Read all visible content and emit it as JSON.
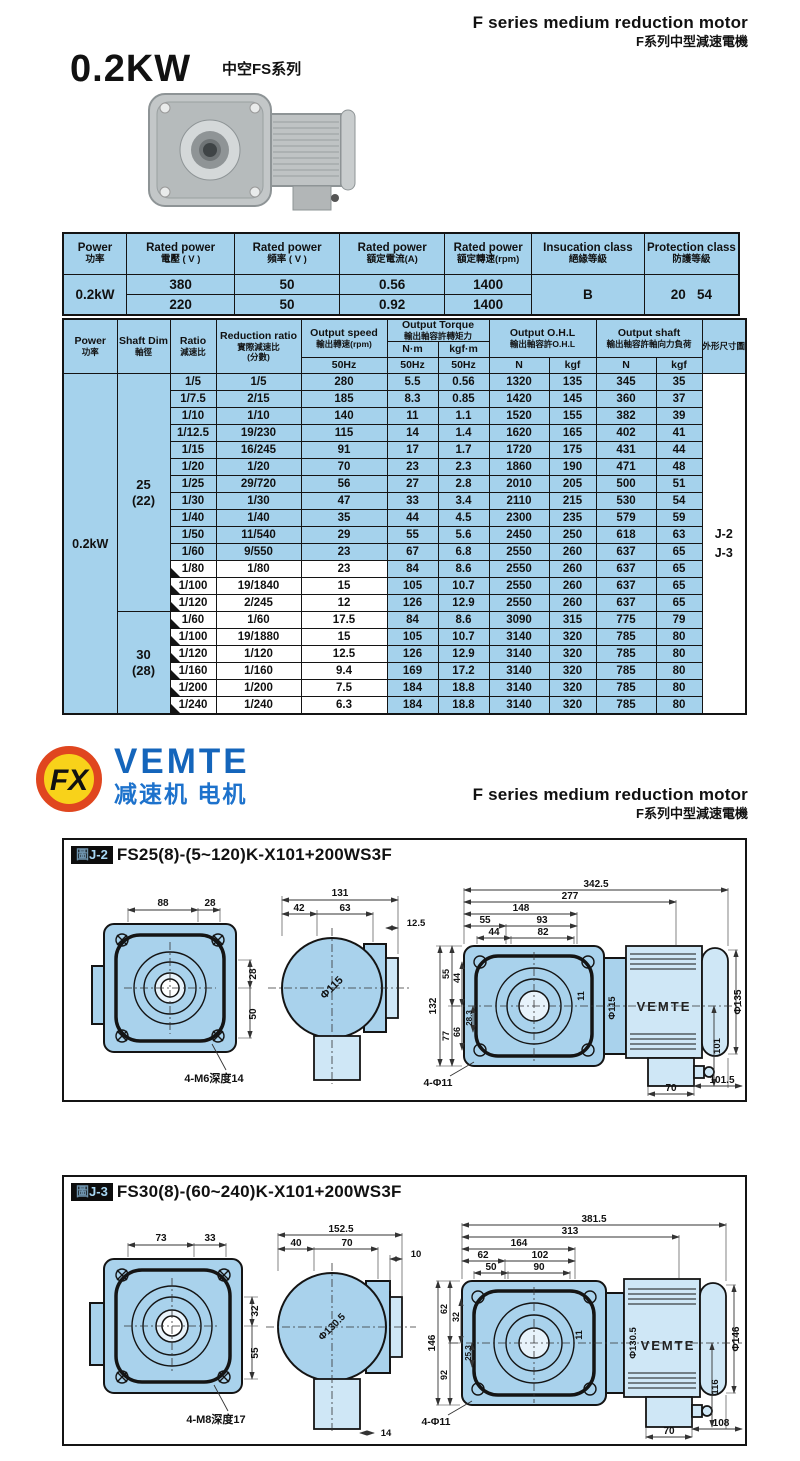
{
  "header": {
    "en": "F series medium reduction motor",
    "zh": "F系列中型減速電機"
  },
  "title": "0.2KW",
  "series": "中空FS系列",
  "logo": {
    "badge": "FX",
    "brand": "VEMTE",
    "tagline": "减速机 电机"
  },
  "table1": {
    "cols": [
      {
        "en": "Power",
        "zh": "功率"
      },
      {
        "en": "Rated power",
        "zh": "電壓 ( V )"
      },
      {
        "en": "Rated power",
        "zh": "頻率 ( V )"
      },
      {
        "en": "Rated power",
        "zh": "額定電流(A)"
      },
      {
        "en": "Rated power",
        "zh": "額定轉速(rpm)"
      },
      {
        "en": "Insucation class",
        "zh": "絕緣等級"
      },
      {
        "en": "Protection class",
        "zh": "防護等級"
      }
    ],
    "power": "0.2kW",
    "rows": [
      [
        "380",
        "50",
        "0.56",
        "1400"
      ],
      [
        "220",
        "50",
        "0.92",
        "1400"
      ]
    ],
    "insulation": "B",
    "protection": "20   54"
  },
  "table2": {
    "power": "0.2kW",
    "h_power": {
      "en": "Power",
      "zh": "功率"
    },
    "h_shaft": {
      "en": "Shaft Dim",
      "zh": "軸徑"
    },
    "h_ratio": {
      "en": "Ratio",
      "zh": "減速比"
    },
    "h_reduction": {
      "en": "Reduction ratio",
      "zh": "實際減速比",
      "zh2": "(分數)"
    },
    "h_speed": {
      "en": "Output speed",
      "zh": "輸出轉速(rpm)",
      "sub": "50Hz"
    },
    "h_torque": {
      "en": "Output Torque",
      "zh": "輸出軸容許轉矩力",
      "u1": "N·m",
      "u2": "kgf·m",
      "f1": "50Hz",
      "f2": "50Hz"
    },
    "h_ohl": {
      "en": "Output O.H.L",
      "zh": "輸出軸容許O.H.L",
      "u1": "N",
      "u2": "kgf"
    },
    "h_outshaft": {
      "en": "Output shaft",
      "zh": "輸出軸容許軸向力負荷",
      "u1": "N",
      "u2": "kgf"
    },
    "h_outline": {
      "zh": "外形尺寸圖"
    },
    "outline_refs": [
      "J-2",
      "J-3"
    ],
    "groups": [
      {
        "shaft": "25",
        "shaft_sub": "(22)",
        "rows": [
          {
            "ratio": "1/5",
            "red": "1/5",
            "spd": "280",
            "nm": "5.5",
            "kgfm": "0.56",
            "ohln": "1320",
            "ohlkgf": "135",
            "shn": "345",
            "shkgf": "35",
            "white": false,
            "tri": false
          },
          {
            "ratio": "1/7.5",
            "red": "2/15",
            "spd": "185",
            "nm": "8.3",
            "kgfm": "0.85",
            "ohln": "1420",
            "ohlkgf": "145",
            "shn": "360",
            "shkgf": "37",
            "white": false,
            "tri": false
          },
          {
            "ratio": "1/10",
            "red": "1/10",
            "spd": "140",
            "nm": "11",
            "kgfm": "1.1",
            "ohln": "1520",
            "ohlkgf": "155",
            "shn": "382",
            "shkgf": "39",
            "white": false,
            "tri": false
          },
          {
            "ratio": "1/12.5",
            "red": "19/230",
            "spd": "115",
            "nm": "14",
            "kgfm": "1.4",
            "ohln": "1620",
            "ohlkgf": "165",
            "shn": "402",
            "shkgf": "41",
            "white": false,
            "tri": false
          },
          {
            "ratio": "1/15",
            "red": "16/245",
            "spd": "91",
            "nm": "17",
            "kgfm": "1.7",
            "ohln": "1720",
            "ohlkgf": "175",
            "shn": "431",
            "shkgf": "44",
            "white": false,
            "tri": false
          },
          {
            "ratio": "1/20",
            "red": "1/20",
            "spd": "70",
            "nm": "23",
            "kgfm": "2.3",
            "ohln": "1860",
            "ohlkgf": "190",
            "shn": "471",
            "shkgf": "48",
            "white": false,
            "tri": false
          },
          {
            "ratio": "1/25",
            "red": "29/720",
            "spd": "56",
            "nm": "27",
            "kgfm": "2.8",
            "ohln": "2010",
            "ohlkgf": "205",
            "shn": "500",
            "shkgf": "51",
            "white": false,
            "tri": false
          },
          {
            "ratio": "1/30",
            "red": "1/30",
            "spd": "47",
            "nm": "33",
            "kgfm": "3.4",
            "ohln": "2110",
            "ohlkgf": "215",
            "shn": "530",
            "shkgf": "54",
            "white": false,
            "tri": false
          },
          {
            "ratio": "1/40",
            "red": "1/40",
            "spd": "35",
            "nm": "44",
            "kgfm": "4.5",
            "ohln": "2300",
            "ohlkgf": "235",
            "shn": "579",
            "shkgf": "59",
            "white": false,
            "tri": false
          },
          {
            "ratio": "1/50",
            "red": "11/540",
            "spd": "29",
            "nm": "55",
            "kgfm": "5.6",
            "ohln": "2450",
            "ohlkgf": "250",
            "shn": "618",
            "shkgf": "63",
            "white": false,
            "tri": false
          },
          {
            "ratio": "1/60",
            "red": "9/550",
            "spd": "23",
            "nm": "67",
            "kgfm": "6.8",
            "ohln": "2550",
            "ohlkgf": "260",
            "shn": "637",
            "shkgf": "65",
            "white": false,
            "tri": false
          },
          {
            "ratio": "1/80",
            "red": "1/80",
            "spd": "23",
            "nm": "84",
            "kgfm": "8.6",
            "ohln": "2550",
            "ohlkgf": "260",
            "shn": "637",
            "shkgf": "65",
            "white": true,
            "tri": true
          },
          {
            "ratio": "1/100",
            "red": "19/1840",
            "spd": "15",
            "nm": "105",
            "kgfm": "10.7",
            "ohln": "2550",
            "ohlkgf": "260",
            "shn": "637",
            "shkgf": "65",
            "white": true,
            "tri": true
          },
          {
            "ratio": "1/120",
            "red": "2/245",
            "spd": "12",
            "nm": "126",
            "kgfm": "12.9",
            "ohln": "2550",
            "ohlkgf": "260",
            "shn": "637",
            "shkgf": "65",
            "white": true,
            "tri": true
          }
        ]
      },
      {
        "shaft": "30",
        "shaft_sub": "(28)",
        "rows": [
          {
            "ratio": "1/60",
            "red": "1/60",
            "spd": "17.5",
            "nm": "84",
            "kgfm": "8.6",
            "ohln": "3090",
            "ohlkgf": "315",
            "shn": "775",
            "shkgf": "79",
            "white": true,
            "tri": true
          },
          {
            "ratio": "1/100",
            "red": "19/1880",
            "spd": "15",
            "nm": "105",
            "kgfm": "10.7",
            "ohln": "3140",
            "ohlkgf": "320",
            "shn": "785",
            "shkgf": "80",
            "white": true,
            "tri": true
          },
          {
            "ratio": "1/120",
            "red": "1/120",
            "spd": "12.5",
            "nm": "126",
            "kgfm": "12.9",
            "ohln": "3140",
            "ohlkgf": "320",
            "shn": "785",
            "shkgf": "80",
            "white": true,
            "tri": true
          },
          {
            "ratio": "1/160",
            "red": "1/160",
            "spd": "9.4",
            "nm": "169",
            "kgfm": "17.2",
            "ohln": "3140",
            "ohlkgf": "320",
            "shn": "785",
            "shkgf": "80",
            "white": true,
            "tri": true
          },
          {
            "ratio": "1/200",
            "red": "1/200",
            "spd": "7.5",
            "nm": "184",
            "kgfm": "18.8",
            "ohln": "3140",
            "ohlkgf": "320",
            "shn": "785",
            "shkgf": "80",
            "white": true,
            "tri": true
          },
          {
            "ratio": "1/240",
            "red": "1/240",
            "spd": "6.3",
            "nm": "184",
            "kgfm": "18.8",
            "ohln": "3140",
            "ohlkgf": "320",
            "shn": "785",
            "shkgf": "80",
            "white": true,
            "tri": true
          }
        ]
      }
    ]
  },
  "j2": {
    "tag_fig": "圖",
    "tag_ref": "J-2",
    "title": "FS25(8)-(5~120)K-X101+200WS3F",
    "front": {
      "top1": "88",
      "top2": "28",
      "r1": "28",
      "r2": "50",
      "note": "4-M6深度14"
    },
    "side": {
      "w": "131",
      "w1": "42",
      "w2": "63",
      "cap": "12.5",
      "dia": "Φ115"
    },
    "main": {
      "len": "342.5",
      "len2": "277",
      "len3": "148",
      "a": "55",
      "b": "93",
      "c": "44",
      "d": "82",
      "h": "132",
      "h1": "55",
      "h2": "77",
      "h3": "44",
      "h4": "66",
      "h5": "28.3",
      "holes": "4-Φ11",
      "hole": "11",
      "dia": "Φ115",
      "brand": "VEMTE",
      "mdia": "Φ135",
      "v1": "101",
      "b1": "70",
      "b2": "101.5"
    }
  },
  "j3": {
    "tag_fig": "圖",
    "tag_ref": "J-3",
    "title": "FS30(8)-(60~240)K-X101+200WS3F",
    "front": {
      "top1": "73",
      "top2": "33",
      "r1": "32",
      "r2": "55",
      "note": "4-M8深度17"
    },
    "side": {
      "w": "152.5",
      "w1": "40",
      "w2": "70",
      "cap": "10",
      "dia": "Φ130.5",
      "b": "14"
    },
    "main": {
      "len": "381.5",
      "len2": "313",
      "len3": "164",
      "a": "62",
      "b": "102",
      "c": "50",
      "d": "90",
      "h": "146",
      "h1": "62",
      "h2": "92",
      "h3": "32",
      "h4": "25.3",
      "holes": "4-Φ11",
      "hole": "11",
      "dia": "Φ130.5",
      "brand": "VEMTE",
      "mdia": "Φ146",
      "v1": "116",
      "b1": "70",
      "b2": "108"
    }
  }
}
